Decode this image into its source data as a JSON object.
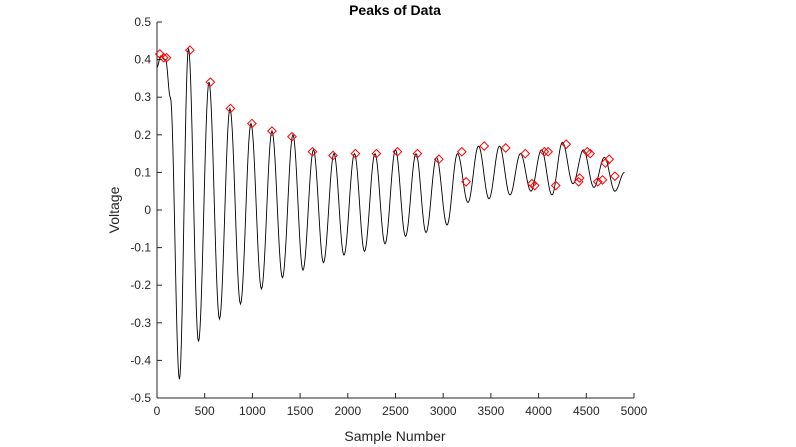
{
  "chart_data": {
    "type": "line",
    "title": "Peaks of Data",
    "xlabel": "Sample Number",
    "ylabel": "Voltage",
    "xlim": [
      0,
      5000
    ],
    "ylim": [
      -0.5,
      0.5
    ],
    "xticks": [
      0,
      500,
      1000,
      1500,
      2000,
      2500,
      3000,
      3500,
      4000,
      4500,
      5000
    ],
    "yticks": [
      -0.5,
      -0.4,
      -0.3,
      -0.2,
      -0.1,
      0,
      0.1,
      0.2,
      0.3,
      0.4,
      0.5
    ],
    "grid": false,
    "colors": {
      "signal": "#000000",
      "peak_marker": "#ff0000"
    },
    "signal": {
      "x": [
        0,
        40,
        90,
        140,
        235,
        330,
        435,
        545,
        655,
        765,
        875,
        985,
        1095,
        1205,
        1315,
        1425,
        1530,
        1640,
        1745,
        1855,
        1960,
        2070,
        2175,
        2285,
        2390,
        2500,
        2605,
        2715,
        2820,
        2930,
        3040,
        3150,
        3260,
        3370,
        3480,
        3590,
        3700,
        3810,
        3920,
        4030,
        4140,
        4250,
        4360,
        4470,
        4580,
        4690,
        4800,
        4900
      ],
      "y": [
        0.38,
        0.41,
        0.4,
        0.3,
        -0.45,
        0.43,
        -0.35,
        0.34,
        -0.29,
        0.27,
        -0.25,
        0.23,
        -0.21,
        0.21,
        -0.18,
        0.2,
        -0.16,
        0.16,
        -0.14,
        0.15,
        -0.12,
        0.15,
        -0.11,
        0.15,
        -0.09,
        0.16,
        -0.07,
        0.15,
        -0.06,
        0.14,
        -0.04,
        0.15,
        0.02,
        0.17,
        0.03,
        0.17,
        0.04,
        0.15,
        0.05,
        0.16,
        0.04,
        0.18,
        0.07,
        0.16,
        0.06,
        0.14,
        0.05,
        0.1
      ]
    },
    "peaks": {
      "x": [
        30,
        70,
        100,
        345,
        560,
        770,
        995,
        1205,
        1415,
        1630,
        1845,
        2080,
        2300,
        2520,
        2730,
        2955,
        3195,
        3240,
        3430,
        3655,
        3860,
        3930,
        3960,
        4060,
        4100,
        4180,
        4290,
        4420,
        4430,
        4510,
        4540,
        4620,
        4670,
        4700,
        4740,
        4800
      ],
      "y": [
        0.415,
        0.405,
        0.405,
        0.425,
        0.34,
        0.27,
        0.23,
        0.21,
        0.195,
        0.155,
        0.145,
        0.15,
        0.15,
        0.155,
        0.15,
        0.135,
        0.155,
        0.075,
        0.17,
        0.165,
        0.15,
        0.07,
        0.065,
        0.155,
        0.155,
        0.065,
        0.175,
        0.075,
        0.085,
        0.155,
        0.15,
        0.075,
        0.08,
        0.125,
        0.135,
        0.09
      ]
    }
  }
}
